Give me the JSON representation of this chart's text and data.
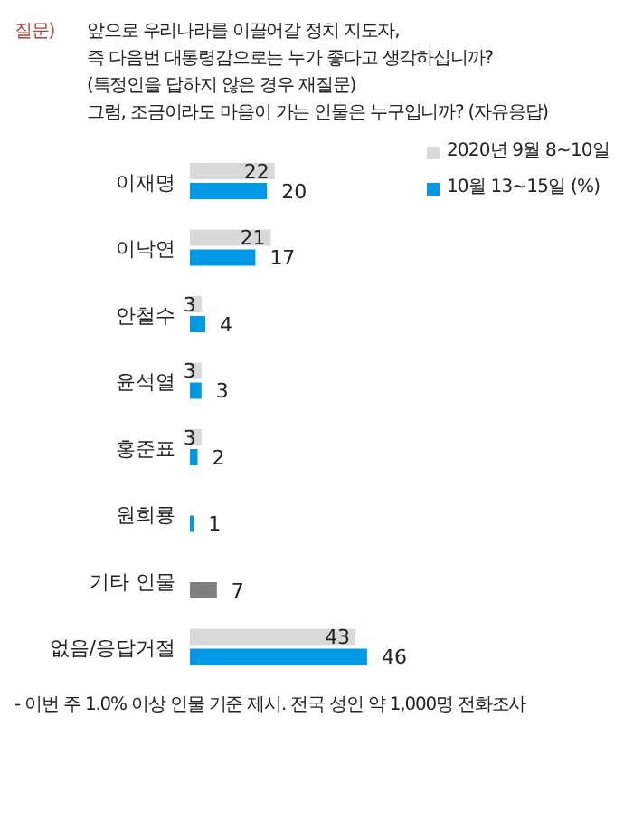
{
  "chart_data": {
    "type": "bar",
    "orientation": "horizontal",
    "title": "앞으로 우리나라를 이끌어갈 정치 지도자,\n즉 다음번 대통령감으로는 누가 좋다고 생각하십니까?\n(특정인을 답하지 않은 경우 재질문)\n그럼, 조금이라도 마음이 가는 인물은 누구입니까? (자유응답)",
    "categories": [
      "이재명",
      "이낙연",
      "안철수",
      "윤석열",
      "홍준표",
      "원희룡",
      "기타 인물",
      "없음/응답거절"
    ],
    "series": [
      {
        "name": "2020년 9월 8~10일",
        "color": "#d9d9d9",
        "values": [
          22,
          21,
          3,
          3,
          3,
          null,
          null,
          43
        ]
      },
      {
        "name": "10월 13~15일 (%)",
        "color": "#0099e6",
        "colors": [
          "#0099e6",
          "#0099e6",
          "#0099e6",
          "#0099e6",
          "#0099e6",
          "#0099e6",
          "#7f7f7f",
          "#0099e6"
        ],
        "values": [
          20,
          17,
          4,
          3,
          2,
          1,
          7,
          46
        ]
      }
    ],
    "data_labels": true,
    "legend": "top right",
    "grid": false,
    "annotations": [
      "질문)",
      "- 이번 주 1.0% 이상 인물 기준 제시. 전국 성인 약 1,000명 전화조사"
    ]
  }
}
